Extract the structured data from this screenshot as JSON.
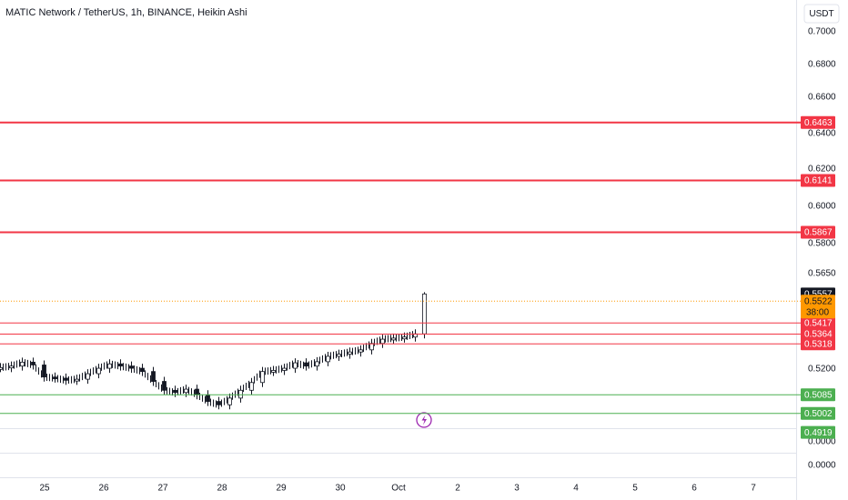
{
  "header": {
    "title": "MATIC Network / TetherUS, 1h, BINANCE, Heikin Ashi",
    "currency": "USDT"
  },
  "price_axis": [
    "0.7000",
    "0.6800",
    "0.6600",
    "0.6400",
    "0.6200",
    "0.6000",
    "0.5800",
    "0.5650",
    "0.5200",
    "0.0000",
    "0.0000"
  ],
  "levels": [
    {
      "label": "0.6463",
      "color": "#f23645",
      "weight": 2
    },
    {
      "label": "0.6141",
      "color": "#f23645",
      "weight": 2
    },
    {
      "label": "0.5867",
      "color": "#f23645",
      "weight": 2
    },
    {
      "label": "0.5417",
      "color": "#f23645",
      "weight": 1
    },
    {
      "label": "0.5364",
      "color": "#f23645",
      "weight": 1
    },
    {
      "label": "0.5318",
      "color": "#f23645",
      "weight": 1
    },
    {
      "label": "0.5085",
      "color": "#4caf50",
      "weight": 1
    },
    {
      "label": "0.5002",
      "color": "#4caf50",
      "weight": 1
    },
    {
      "label": "0.4919",
      "color": "#4caf50",
      "weight": 0
    }
  ],
  "last_price": {
    "label": "0.5557",
    "color": "#131722"
  },
  "current": {
    "label": "0.5522",
    "countdown": "38:00",
    "color": "#ff9800"
  },
  "time_axis": [
    "25",
    "26",
    "27",
    "28",
    "29",
    "30",
    "Oct",
    "2",
    "3",
    "4",
    "5",
    "6",
    "7"
  ],
  "closes": [
    0.5208,
    0.5215,
    0.5233,
    0.522,
    0.5165,
    0.516,
    0.515,
    0.5155,
    0.518,
    0.5205,
    0.5225,
    0.5215,
    0.5205,
    0.519,
    0.5145,
    0.5105,
    0.5095,
    0.511,
    0.5085,
    0.5055,
    0.504,
    0.507,
    0.5105,
    0.514,
    0.519,
    0.5195,
    0.5205,
    0.523,
    0.5215,
    0.5235,
    0.526,
    0.527,
    0.528,
    0.529,
    0.532,
    0.534,
    0.5345,
    0.535,
    0.5365,
    0.5557
  ]
}
